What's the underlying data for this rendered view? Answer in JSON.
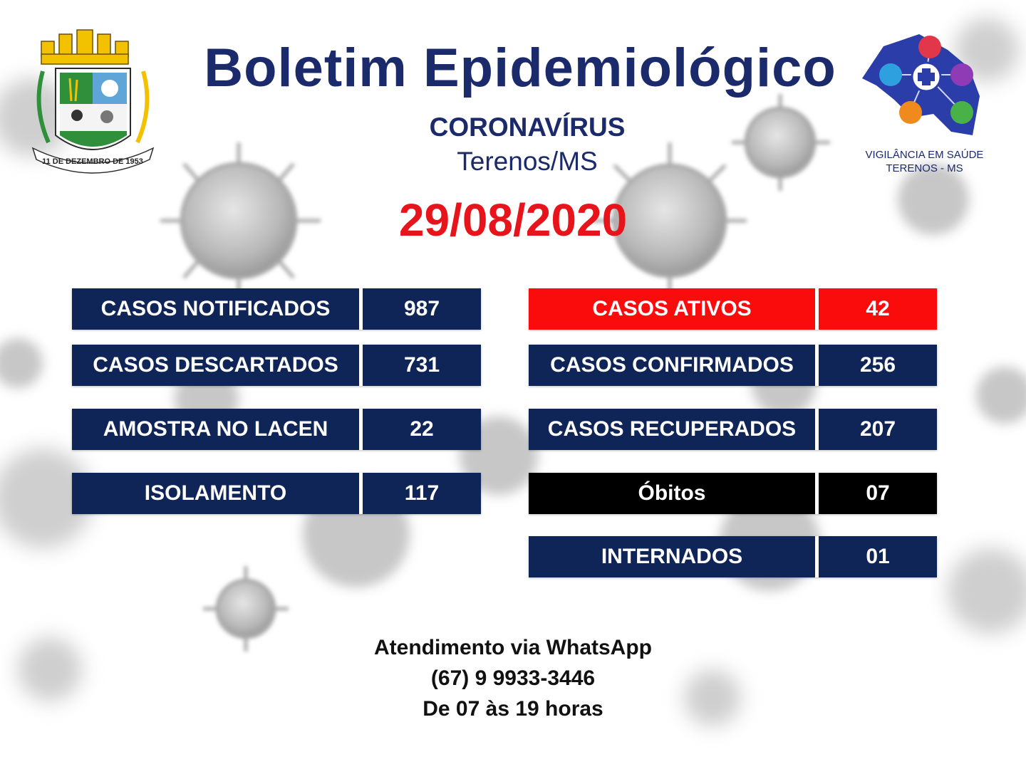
{
  "header": {
    "title": "Boletim Epidemiológico",
    "subtitle": "CORONAVÍRUS",
    "location": "Terenos/MS",
    "date": "29/08/2020"
  },
  "crest": {
    "banner_text": "11 DE DEZEMBRO DE 1953"
  },
  "vigilancia_logo": {
    "line1": "VIGILÂNCIA EM SAÚDE",
    "line2": "TERENOS - MS"
  },
  "stats_left": [
    {
      "label": "CASOS NOTIFICADOS",
      "value": "987"
    },
    {
      "label": "CASOS DESCARTADOS",
      "value": "731"
    },
    {
      "label": "AMOSTRA NO LACEN",
      "value": "22"
    },
    {
      "label": "ISOLAMENTO",
      "value": "117"
    }
  ],
  "stats_right": [
    {
      "label": "CASOS ATIVOS",
      "value": "42"
    },
    {
      "label": "CASOS CONFIRMADOS",
      "value": "256"
    },
    {
      "label": "CASOS RECUPERADOS",
      "value": "207"
    },
    {
      "label": "Óbitos",
      "value": "07"
    },
    {
      "label": "INTERNADOS",
      "value": "01"
    }
  ],
  "footer": {
    "line1": "Atendimento via WhatsApp",
    "line2": "(67) 9 9933-3446",
    "line3": "De 07 às 19 horas"
  },
  "colors": {
    "navy": "#0f2558",
    "red": "#fb0c0c",
    "black": "#000000",
    "title": "#1b2a6b"
  }
}
